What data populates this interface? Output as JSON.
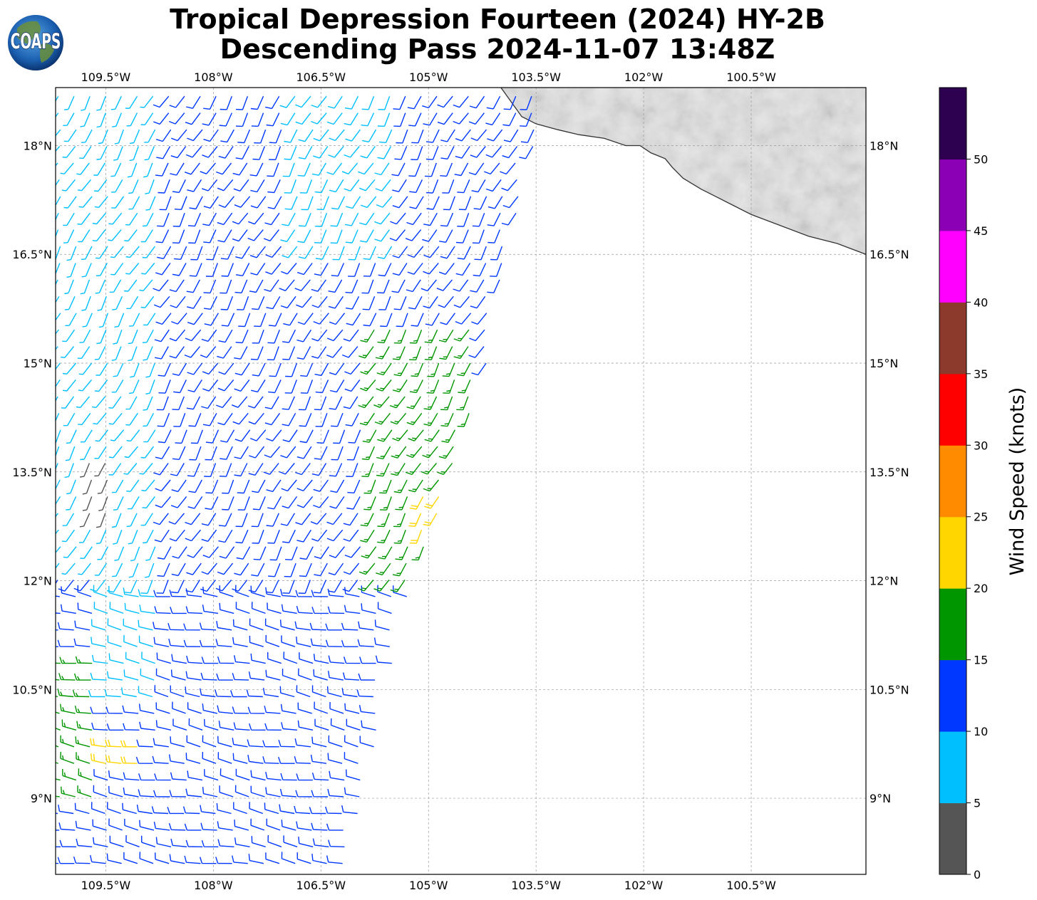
{
  "figure": {
    "title_line1": "Tropical Depression Fourteen (2024) HY-2B",
    "title_line2": "Descending Pass 2024-11-07 13:48Z",
    "logo_text": "COAPS"
  },
  "map": {
    "lon_range": [
      -110.2,
      -98.9
    ],
    "lat_range": [
      7.95,
      18.8
    ],
    "lon_ticks": [
      {
        "value": -109.5,
        "label": "109.5°W"
      },
      {
        "value": -108.0,
        "label": "108°W"
      },
      {
        "value": -106.5,
        "label": "106.5°W"
      },
      {
        "value": -105.0,
        "label": "105°W"
      },
      {
        "value": -103.5,
        "label": "103.5°W"
      },
      {
        "value": -102.0,
        "label": "102°W"
      },
      {
        "value": -100.5,
        "label": "100.5°W"
      }
    ],
    "lat_ticks": [
      {
        "value": 18.0,
        "label": "18°N"
      },
      {
        "value": 16.5,
        "label": "16.5°N"
      },
      {
        "value": 15.0,
        "label": "15°N"
      },
      {
        "value": 13.5,
        "label": "13.5°N"
      },
      {
        "value": 12.0,
        "label": "12°N"
      },
      {
        "value": 10.5,
        "label": "10.5°N"
      },
      {
        "value": 9.0,
        "label": "9°N"
      }
    ],
    "gridlines": true,
    "land_terrain": "grayscale",
    "coastline": [
      [
        -103.99,
        18.8
      ],
      [
        -103.7,
        18.4
      ],
      [
        -103.5,
        18.3
      ],
      [
        -103.2,
        18.22
      ],
      [
        -102.9,
        18.15
      ],
      [
        -102.55,
        18.1
      ],
      [
        -102.25,
        18.0
      ],
      [
        -102.05,
        18.0
      ],
      [
        -101.9,
        17.9
      ],
      [
        -101.7,
        17.82
      ],
      [
        -101.6,
        17.7
      ],
      [
        -101.45,
        17.55
      ],
      [
        -101.2,
        17.4
      ],
      [
        -100.9,
        17.25
      ],
      [
        -100.5,
        17.05
      ],
      [
        -100.1,
        16.9
      ],
      [
        -99.7,
        16.75
      ],
      [
        -99.3,
        16.65
      ],
      [
        -98.9,
        16.5
      ]
    ],
    "swath_edge": [
      [
        -103.5,
        17.95
      ],
      [
        -104.3,
        18.8
      ],
      [
        -104.0,
        18.8
      ],
      [
        -103.5,
        17.95
      ],
      [
        -103.9,
        16.6
      ],
      [
        -104.1,
        15.3
      ],
      [
        -104.4,
        14.3
      ],
      [
        -104.7,
        13.3
      ],
      [
        -105.1,
        12.4
      ],
      [
        -105.4,
        11.4
      ],
      [
        -105.6,
        10.4
      ],
      [
        -105.8,
        9.4
      ],
      [
        -106.0,
        8.6
      ],
      [
        -106.2,
        7.95
      ]
    ]
  },
  "colorbar": {
    "label": "Wind Speed (knots)",
    "ticks": [
      "0",
      "5",
      "10",
      "15",
      "20",
      "25",
      "30",
      "35",
      "40",
      "45",
      "50"
    ],
    "colors": [
      "#555555",
      "#00bfff",
      "#0038ff",
      "#009600",
      "#ffd600",
      "#ff8c00",
      "#ff0000",
      "#8b3a2b",
      "#ff00ff",
      "#8b00b4",
      "#2d0050"
    ],
    "max": 55
  },
  "chart_data": {
    "type": "wind_barbs",
    "units": "knots",
    "region_speeds": [
      {
        "lon_min": -110.2,
        "lon_max": -108.8,
        "lat_min": 12.2,
        "lat_max": 18.8,
        "speed": 7
      },
      {
        "lon_min": -108.8,
        "lon_max": -107.0,
        "lat_min": 12.0,
        "lat_max": 18.8,
        "speed": 12
      },
      {
        "lon_min": -107.0,
        "lon_max": -105.5,
        "lat_min": 16.5,
        "lat_max": 18.8,
        "speed": 8
      },
      {
        "lon_min": -107.0,
        "lon_max": -105.9,
        "lat_min": 11.0,
        "lat_max": 16.5,
        "speed": 12
      },
      {
        "lon_min": -105.9,
        "lon_max": -104.4,
        "lat_min": 12.0,
        "lat_max": 15.6,
        "speed": 17
      },
      {
        "lon_min": -105.1,
        "lon_max": -104.6,
        "lat_min": 12.7,
        "lat_max": 13.3,
        "speed": 22
      },
      {
        "lon_min": -110.2,
        "lon_max": -109.5,
        "lat_min": 8.8,
        "lat_max": 11.0,
        "speed": 17
      },
      {
        "lon_min": -109.7,
        "lon_max": -109.0,
        "lat_min": 9.3,
        "lat_max": 9.8,
        "speed": 22
      },
      {
        "lon_min": -108.8,
        "lon_max": -107.0,
        "lat_min": 8.0,
        "lat_max": 11.8,
        "speed": 12
      },
      {
        "lon_min": -109.5,
        "lon_max": -108.8,
        "lat_min": 10.2,
        "lat_max": 12.2,
        "speed": 8
      },
      {
        "lon_min": -109.8,
        "lon_max": -109.3,
        "lat_min": 12.9,
        "lat_max": 13.8,
        "speed": 3
      }
    ],
    "flow_regions": [
      {
        "name": "northern-westerly",
        "lat_min": 12.0,
        "direction_deg": 210
      },
      {
        "name": "southern-westerly",
        "lat_max": 12.0,
        "direction_deg": 280
      }
    ]
  }
}
